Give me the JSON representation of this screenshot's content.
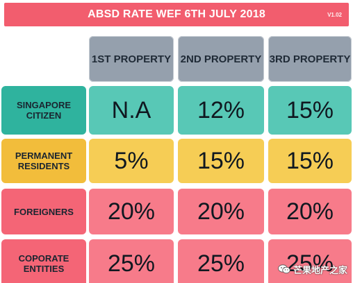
{
  "banner": {
    "title": "ABSD RATE WEF 6TH JULY 2018",
    "version": "V1.02",
    "color": "#f25d6e"
  },
  "columns": [
    "1ST PROPERTY",
    "2ND PROPERTY",
    "3RD PROPERTY"
  ],
  "rows": [
    {
      "label": "SINGAPORE CITIZEN",
      "values": [
        "N.A",
        "12%",
        "15%"
      ],
      "color": "#2fb39e"
    },
    {
      "label": "PERMANENT RESIDENTS",
      "values": [
        "5%",
        "15%",
        "15%"
      ],
      "color": "#f2bd3b"
    },
    {
      "label": "FOREIGNERS",
      "values": [
        "20%",
        "20%",
        "20%"
      ],
      "color": "#f46576"
    },
    {
      "label": "COPORATE ENTITIES",
      "values": [
        "25%",
        "25%",
        "25%"
      ],
      "color": "#f46576"
    }
  ],
  "watermark": {
    "text": "芒果地产之家",
    "icon": "wechat-icon"
  }
}
